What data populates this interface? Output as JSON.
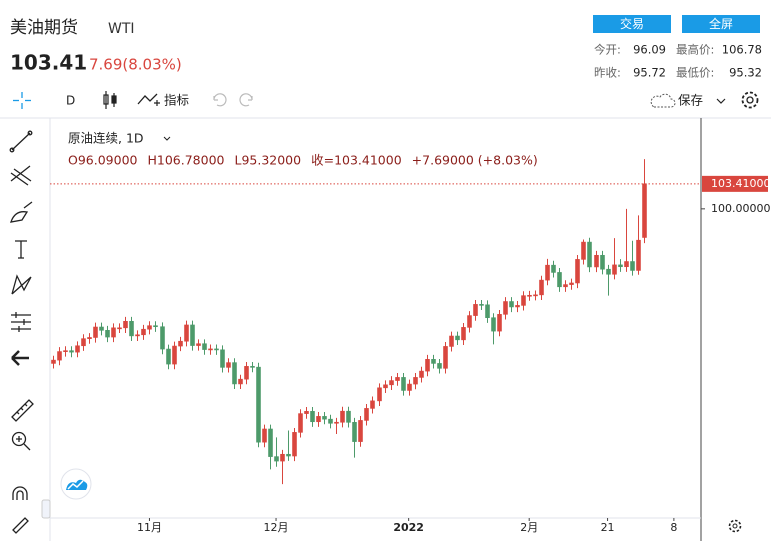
{
  "header": {
    "name": "美油期货",
    "code": "WTI",
    "price": "103.41",
    "change": "7.69(8.03%)",
    "buttons": [
      "交易",
      "全屏"
    ],
    "stats": [
      {
        "label": "今开:",
        "value": "96.09"
      },
      {
        "label": "最高价:",
        "value": "106.78"
      },
      {
        "label": "昨收:",
        "value": "95.72"
      },
      {
        "label": "最低价:",
        "value": "95.32"
      }
    ]
  },
  "toolbar": {
    "interval": "D",
    "indicators": "指标",
    "save": "保存"
  },
  "chart_data": {
    "type": "candlestick",
    "legend_title": "原油连续, 1D",
    "legend_values": [
      "O96.09000",
      "H106.78000",
      "L95.32000",
      "收=103.41000",
      "+7.69000 (+8.03%)"
    ],
    "up_color": "#d9463e",
    "down_color": "#4d9a6a",
    "last_price": {
      "value": 103.41,
      "label": "103.41000"
    },
    "xlim": [
      -0.5,
      107.5
    ],
    "xticks": [
      {
        "value": 16,
        "label": "11月"
      },
      {
        "value": 37,
        "label": "12月"
      },
      {
        "value": 59,
        "label": "2022"
      },
      {
        "value": 79,
        "label": "2月"
      },
      {
        "value": 92,
        "label": "21"
      },
      {
        "value": 103,
        "label": "8"
      }
    ],
    "ylim": [
      57.8,
      112.4
    ],
    "yticks": [
      {
        "value": 100,
        "label": "100.00000"
      }
    ],
    "series": [
      {
        "open": [
          78.9,
          79.35,
          80.52,
          80.64,
          80.44,
          81.31,
          82.28,
          82.44,
          83.87,
          83.42,
          82.5,
          83.7,
          83.76,
          84.65,
          82.66,
          82.81,
          83.57,
          84.05,
          83.91,
          80.86,
          78.81,
          81.27,
          81.93,
          84.15,
          81.34,
          81.59,
          80.79,
          80.88,
          80.76,
          78.36,
          79.01,
          76.1,
          76.75,
          78.5,
          78.39,
          68.15,
          69.95,
          66.18,
          65.57,
          66.5,
          66.26,
          69.49,
          72.05,
          72.36,
          70.94,
          71.67,
          71.29,
          70.73,
          70.87,
          72.38,
          70.86,
          68.23,
          71.12,
          72.76,
          73.79,
          75.57,
          75.98,
          76.56,
          76.99,
          75.21,
          76.08,
          76.99,
          77.85,
          79.46,
          78.9,
          78.23,
          81.22,
          82.64,
          82.12,
          83.82,
          85.43,
          86.96,
          86.9,
          85.14,
          83.31,
          85.6,
          87.35,
          86.61,
          86.82,
          88.15,
          88.2,
          88.26,
          90.27,
          92.31,
          91.32,
          89.36,
          89.66,
          89.88,
          93.1,
          95.46,
          92.07,
          93.66,
          91.76,
          91.07,
          92.35,
          92.1,
          92.81,
          91.59,
          96.09
        ],
        "high": [
          79.95,
          81.12,
          81.24,
          81.24,
          81.91,
          82.88,
          83.04,
          84.47,
          84.47,
          84.02,
          84.36,
          84.36,
          85.25,
          85.25,
          83.41,
          84.17,
          84.65,
          84.65,
          84.51,
          81.46,
          81.87,
          82.53,
          84.75,
          84.75,
          82.19,
          82.19,
          81.48,
          81.48,
          81.36,
          79.61,
          79.61,
          77.35,
          79.1,
          79.1,
          78.99,
          70.55,
          70.55,
          68.8,
          67.1,
          69.74,
          70.09,
          72.65,
          72.96,
          72.96,
          72.27,
          72.27,
          71.89,
          71.47,
          72.98,
          72.98,
          71.46,
          71.72,
          73.36,
          74.39,
          76.17,
          76.58,
          77.16,
          77.59,
          77.59,
          76.68,
          77.59,
          78.45,
          80.06,
          80.06,
          79.5,
          81.82,
          83.24,
          83.24,
          84.42,
          86.03,
          87.56,
          87.56,
          87.5,
          85.74,
          86.2,
          87.95,
          87.95,
          87.42,
          88.75,
          88.8,
          88.86,
          90.87,
          93.17,
          92.91,
          91.92,
          90.26,
          90.48,
          93.7,
          95.82,
          96.06,
          94.26,
          94.26,
          92.36,
          96.0,
          93.14,
          100.0,
          95.64,
          99.1,
          106.78
        ],
        "low": [
          78.2,
          78.65,
          79.82,
          79.74,
          79.74,
          80.61,
          81.58,
          81.74,
          82.72,
          81.8,
          81.8,
          83.06,
          83.06,
          81.96,
          81.96,
          82.11,
          82.87,
          83.21,
          80.16,
          78.11,
          78.11,
          80.57,
          81.23,
          80.64,
          80.64,
          80.09,
          80.09,
          80.06,
          77.66,
          77.66,
          75.4,
          75.4,
          76.05,
          77.69,
          67.45,
          67.45,
          64.43,
          64.8,
          62.43,
          65.6,
          65.56,
          68.79,
          71.35,
          70.24,
          70.24,
          70.59,
          70.03,
          69.26,
          70.17,
          70.16,
          66.04,
          67.53,
          70.42,
          72.06,
          73.09,
          74.87,
          75.28,
          75.86,
          74.51,
          74.51,
          75.38,
          76.29,
          77.15,
          78.2,
          77.53,
          77.53,
          80.52,
          81.42,
          81.42,
          83.12,
          84.73,
          86.2,
          84.44,
          81.5,
          82.61,
          84.9,
          85.91,
          85.91,
          86.12,
          87.45,
          87.5,
          87.56,
          89.57,
          90.62,
          88.66,
          88.66,
          88.96,
          89.18,
          92.4,
          91.37,
          91.37,
          91.06,
          88.15,
          90.37,
          91.4,
          91.4,
          90.89,
          91.0,
          95.32
        ],
        "close": [
          79.35,
          80.52,
          80.64,
          80.44,
          81.31,
          82.28,
          82.44,
          83.87,
          83.42,
          82.5,
          83.76,
          83.76,
          84.65,
          82.66,
          82.81,
          83.57,
          84.05,
          83.91,
          80.86,
          78.81,
          81.27,
          81.93,
          84.15,
          81.34,
          81.59,
          80.79,
          80.88,
          80.76,
          78.36,
          79.01,
          76.1,
          76.75,
          78.5,
          78.39,
          68.15,
          69.95,
          66.18,
          65.57,
          66.5,
          66.26,
          69.49,
          72.05,
          72.36,
          70.94,
          71.67,
          71.29,
          70.73,
          70.87,
          72.38,
          70.86,
          68.23,
          71.12,
          72.76,
          73.79,
          75.57,
          75.98,
          76.56,
          76.99,
          75.21,
          76.08,
          76.99,
          77.85,
          79.46,
          78.9,
          78.23,
          81.22,
          82.64,
          82.12,
          83.82,
          85.43,
          86.96,
          86.9,
          85.14,
          83.31,
          85.6,
          87.35,
          86.61,
          86.82,
          88.15,
          88.2,
          88.26,
          90.27,
          92.31,
          91.32,
          89.36,
          89.66,
          89.88,
          93.1,
          95.46,
          92.07,
          93.66,
          91.76,
          91.07,
          92.35,
          92.1,
          92.81,
          91.59,
          95.72,
          103.41
        ]
      }
    ]
  }
}
